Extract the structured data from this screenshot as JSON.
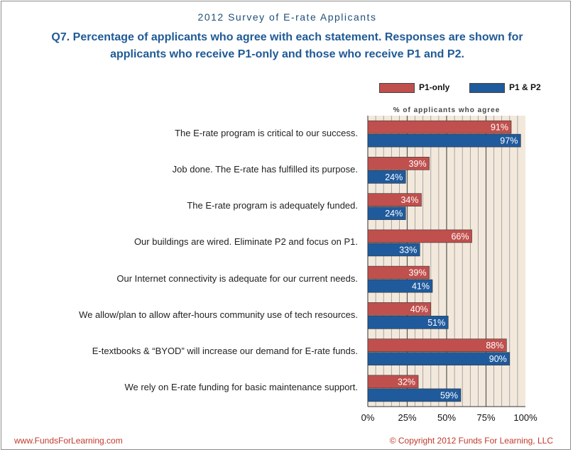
{
  "header": {
    "title": "2012 Survey of E-rate Applicants",
    "subtitle": "Q7. Percentage of applicants who agree with each statement. Responses are shown for applicants who receive P1-only and those who receive P1 and P2."
  },
  "footer": {
    "website": "www.FundsForLearning.com",
    "copyright": "© Copyright 2012 Funds For Learning, LLC"
  },
  "chart_data": {
    "type": "bar",
    "orientation": "horizontal",
    "title": "Q7. Percentage of applicants who agree with each statement. Responses are shown for applicants who receive P1-only and those who receive P1 and P2.",
    "xlabel": "% of applicants who agree",
    "xlim": [
      0,
      100
    ],
    "xticks": [
      "0%",
      "25%",
      "50%",
      "75%",
      "100%"
    ],
    "legend_position": "top-right",
    "categories": [
      "The E-rate program is critical to our success.",
      "Job done. The E-rate has fulfilled its purpose.",
      "The E-rate program is adequately funded.",
      "Our buildings are wired. Eliminate P2 and focus on P1.",
      "Our Internet connectivity is adequate for our current needs.",
      "We allow/plan to allow after-hours community  use of tech resources.",
      "E-textbooks & “BYOD” will increase our demand for E-rate funds.",
      "We rely on E-rate funding for basic maintenance support."
    ],
    "series": [
      {
        "name": "P1-only",
        "color": "#c0504d",
        "values": [
          91,
          39,
          34,
          66,
          39,
          40,
          88,
          32
        ],
        "labels": [
          "91%",
          "39%",
          "34%",
          "66%",
          "39%",
          "40%",
          "88%",
          "32%"
        ]
      },
      {
        "name": "P1 & P2",
        "color": "#1f5a9c",
        "values": [
          97,
          24,
          24,
          33,
          41,
          51,
          90,
          59
        ],
        "labels": [
          "97%",
          "24%",
          "24%",
          "33%",
          "41%",
          "51%",
          "90%",
          "59%"
        ]
      }
    ]
  }
}
